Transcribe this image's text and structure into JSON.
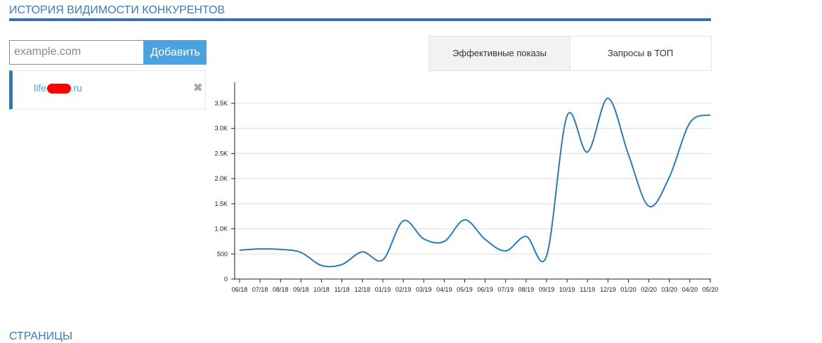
{
  "header": {
    "title": "ИСТОРИЯ ВИДИМОСТИ КОНКУРЕНТОВ"
  },
  "form": {
    "placeholder": "example.com",
    "button": "Добавить"
  },
  "tabs": [
    "Эффективные показы",
    "Запросы в ТОП"
  ],
  "competitor": {
    "prefix": "life-",
    "suffix": ".ru"
  },
  "footer": {
    "title": "СТРАНИЦЫ"
  },
  "chart_data": {
    "type": "line",
    "categories": [
      "06/18",
      "07/18",
      "08/18",
      "09/18",
      "10/18",
      "11/18",
      "12/18",
      "01/19",
      "02/19",
      "03/19",
      "04/19",
      "05/19",
      "06/19",
      "07/19",
      "08/19",
      "09/19",
      "10/19",
      "11/19",
      "12/19",
      "01/20",
      "02/20",
      "03/20",
      "04/20",
      "05/20"
    ],
    "series": [
      {
        "name": "life-.ru",
        "color": "#2b7bb5",
        "values": [
          575,
          600,
          590,
          530,
          270,
          290,
          540,
          380,
          1160,
          800,
          750,
          1180,
          790,
          560,
          850,
          460,
          3250,
          2530,
          3600,
          2480,
          1450,
          2030,
          3110,
          3270
        ]
      }
    ],
    "ylim": [
      0,
      3920
    ],
    "yticks": [
      0,
      500,
      {
        "value": 1000,
        "label": "1.0K"
      },
      {
        "value": 1500,
        "label": "1.5K"
      },
      {
        "value": 2000,
        "label": "2.0K"
      },
      {
        "value": 2500,
        "label": "2.5K"
      },
      {
        "value": 3000,
        "label": "3.0K"
      },
      {
        "value": 3500,
        "label": "3.5K"
      }
    ],
    "grid": true
  }
}
